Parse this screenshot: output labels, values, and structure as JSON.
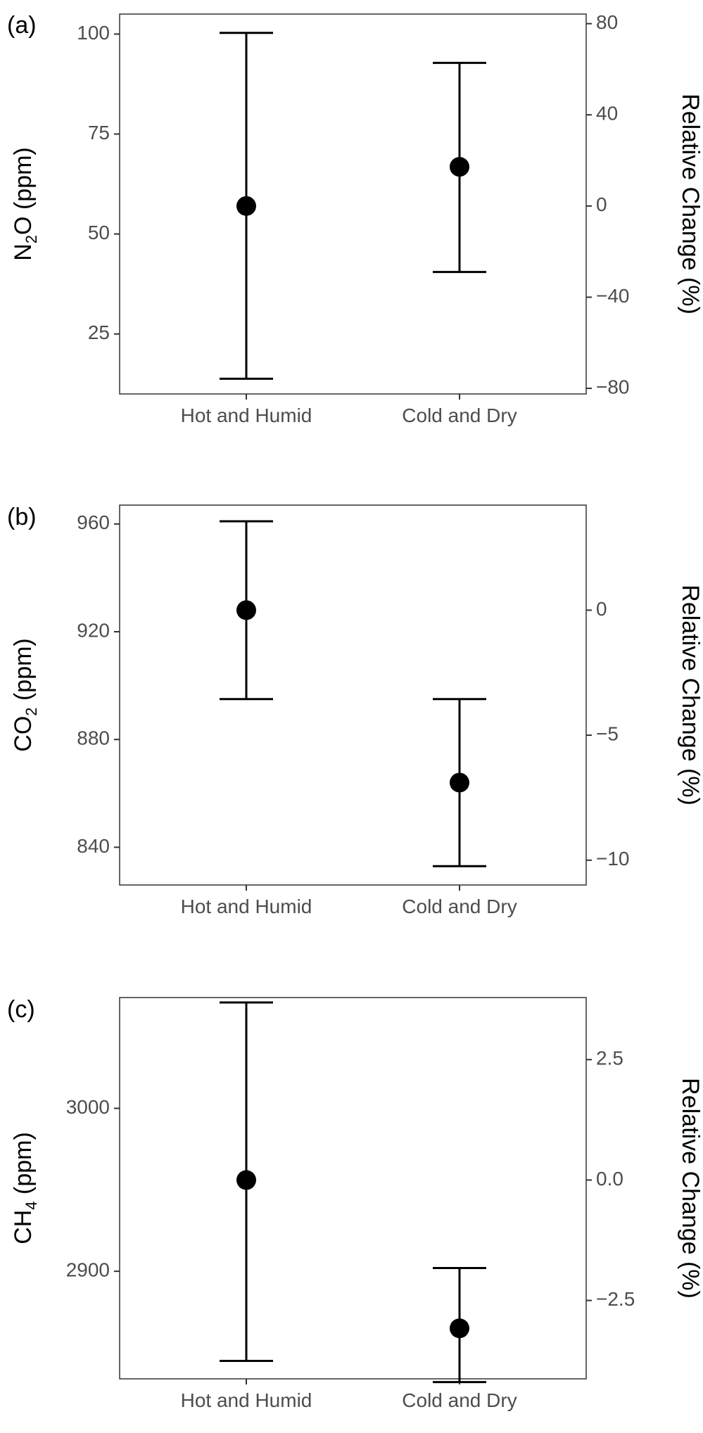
{
  "chart_data": [
    {
      "type": "scatter",
      "panel_label": "(a)",
      "categories": [
        "Hot and Humid",
        "Cold and Dry"
      ],
      "ylabel": {
        "base": "N",
        "sub": "2",
        "rest": "O (ppm)"
      },
      "ylim": [
        10,
        105
      ],
      "yticks": [
        "25",
        "50",
        "75",
        "100"
      ],
      "y2label": "Relative Change (%)",
      "y2ticks": [
        "−80",
        "−40",
        "0",
        "40",
        "80"
      ],
      "y2tick_values": [
        -80,
        -40,
        0,
        40,
        80
      ],
      "y2_reference": 57,
      "mean": [
        57,
        66.8
      ],
      "lower": [
        13.8,
        40.5
      ],
      "upper": [
        100.3,
        92.8
      ]
    },
    {
      "type": "scatter",
      "panel_label": "(b)",
      "categories": [
        "Hot and Humid",
        "Cold and Dry"
      ],
      "ylabel": {
        "base": "CO",
        "sub": "2",
        "rest": " (ppm)"
      },
      "ylim": [
        826,
        967
      ],
      "yticks": [
        "840",
        "880",
        "920",
        "960"
      ],
      "y2label": "Relative Change (%)",
      "y2ticks": [
        "−10",
        "−5",
        "0"
      ],
      "y2tick_values": [
        -10,
        -5,
        0
      ],
      "y2_reference": 928,
      "mean": [
        928,
        864
      ],
      "lower": [
        895,
        833
      ],
      "upper": [
        961,
        895
      ]
    },
    {
      "type": "scatter",
      "panel_label": "(c)",
      "categories": [
        "Hot and Humid",
        "Cold and Dry"
      ],
      "ylabel": {
        "base": "CH",
        "sub": "4",
        "rest": " (ppm)"
      },
      "ylim": [
        2834,
        3068
      ],
      "yticks": [
        "2900",
        "3000"
      ],
      "y2label": "Relative Change (%)",
      "y2ticks": [
        "−2.5",
        "0.0",
        "2.5"
      ],
      "y2tick_values": [
        -2.5,
        0,
        2.5
      ],
      "y2_reference": 2956,
      "mean": [
        2956,
        2865
      ],
      "lower": [
        2845,
        2832
      ],
      "upper": [
        3065,
        2902
      ]
    }
  ]
}
